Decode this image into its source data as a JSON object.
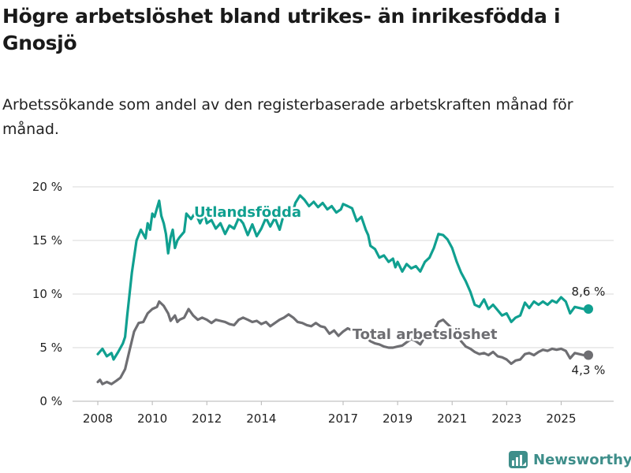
{
  "title": "Högre arbetslöshet bland utrikes- än inrikesfödda i Gnosjö",
  "subtitle": "Arbetssökande som andel av den registerbaserade arbetskraften månad för månad.",
  "brand": "Newsworthy",
  "colors": {
    "foreign": "#10a090",
    "total": "#6e6e72",
    "grid": "#d9d9d9",
    "text": "#222222",
    "brand": "#3e8e8a"
  },
  "chart_data": {
    "type": "line",
    "x_range": [
      2008,
      2026.2
    ],
    "ylim": [
      0,
      20
    ],
    "y_ticks": [
      0,
      5,
      10,
      15,
      20
    ],
    "y_tick_labels": [
      "0 %",
      "5 %",
      "10 %",
      "15 %",
      "20 %"
    ],
    "x_ticks": [
      2008,
      2010,
      2012,
      2014,
      2017,
      2019,
      2021,
      2023,
      2025
    ],
    "x_tick_labels": [
      "2008",
      "2010",
      "2012",
      "2014",
      "2017",
      "2019",
      "2021",
      "2023",
      "2025"
    ],
    "grid": true,
    "series": [
      {
        "name": "Utlandsfödda",
        "color": "#10a090",
        "end_label": "8,6 %",
        "end_value": 8.6,
        "points": [
          [
            2008.0,
            4.4
          ],
          [
            2008.17,
            4.9
          ],
          [
            2008.33,
            4.2
          ],
          [
            2008.5,
            4.5
          ],
          [
            2008.58,
            3.9
          ],
          [
            2008.75,
            4.6
          ],
          [
            2008.92,
            5.4
          ],
          [
            2009.0,
            6.0
          ],
          [
            2009.08,
            8.0
          ],
          [
            2009.25,
            12.0
          ],
          [
            2009.42,
            15.0
          ],
          [
            2009.58,
            16.0
          ],
          [
            2009.75,
            15.2
          ],
          [
            2009.83,
            16.6
          ],
          [
            2009.92,
            16.0
          ],
          [
            2010.0,
            17.5
          ],
          [
            2010.08,
            17.2
          ],
          [
            2010.17,
            18.0
          ],
          [
            2010.25,
            18.7
          ],
          [
            2010.33,
            17.3
          ],
          [
            2010.42,
            16.6
          ],
          [
            2010.5,
            15.6
          ],
          [
            2010.58,
            13.8
          ],
          [
            2010.67,
            15.3
          ],
          [
            2010.75,
            16.0
          ],
          [
            2010.83,
            14.3
          ],
          [
            2010.92,
            15.0
          ],
          [
            2011.0,
            15.3
          ],
          [
            2011.17,
            15.8
          ],
          [
            2011.25,
            17.5
          ],
          [
            2011.42,
            17.0
          ],
          [
            2011.58,
            17.6
          ],
          [
            2011.75,
            16.6
          ],
          [
            2011.92,
            17.5
          ],
          [
            2012.0,
            16.6
          ],
          [
            2012.17,
            16.9
          ],
          [
            2012.33,
            16.1
          ],
          [
            2012.5,
            16.6
          ],
          [
            2012.67,
            15.6
          ],
          [
            2012.83,
            16.4
          ],
          [
            2013.0,
            16.1
          ],
          [
            2013.17,
            17.1
          ],
          [
            2013.33,
            16.6
          ],
          [
            2013.5,
            15.5
          ],
          [
            2013.67,
            16.5
          ],
          [
            2013.83,
            15.4
          ],
          [
            2014.0,
            16.1
          ],
          [
            2014.17,
            17.1
          ],
          [
            2014.33,
            16.3
          ],
          [
            2014.5,
            17.1
          ],
          [
            2014.67,
            16.0
          ],
          [
            2014.83,
            17.5
          ],
          [
            2015.0,
            18.0
          ],
          [
            2015.17,
            17.8
          ],
          [
            2015.25,
            18.5
          ],
          [
            2015.42,
            19.2
          ],
          [
            2015.58,
            18.8
          ],
          [
            2015.75,
            18.2
          ],
          [
            2015.92,
            18.6
          ],
          [
            2016.08,
            18.1
          ],
          [
            2016.25,
            18.5
          ],
          [
            2016.42,
            17.9
          ],
          [
            2016.58,
            18.2
          ],
          [
            2016.75,
            17.6
          ],
          [
            2016.92,
            17.9
          ],
          [
            2017.0,
            18.4
          ],
          [
            2017.17,
            18.2
          ],
          [
            2017.33,
            18.0
          ],
          [
            2017.5,
            16.8
          ],
          [
            2017.67,
            17.2
          ],
          [
            2017.83,
            16.0
          ],
          [
            2017.92,
            15.5
          ],
          [
            2018.0,
            14.5
          ],
          [
            2018.17,
            14.2
          ],
          [
            2018.33,
            13.4
          ],
          [
            2018.5,
            13.6
          ],
          [
            2018.67,
            13.0
          ],
          [
            2018.83,
            13.3
          ],
          [
            2018.92,
            12.5
          ],
          [
            2019.0,
            13.0
          ],
          [
            2019.17,
            12.1
          ],
          [
            2019.33,
            12.8
          ],
          [
            2019.5,
            12.4
          ],
          [
            2019.67,
            12.6
          ],
          [
            2019.83,
            12.1
          ],
          [
            2020.0,
            13.0
          ],
          [
            2020.17,
            13.4
          ],
          [
            2020.33,
            14.3
          ],
          [
            2020.5,
            15.6
          ],
          [
            2020.67,
            15.5
          ],
          [
            2020.83,
            15.1
          ],
          [
            2021.0,
            14.3
          ],
          [
            2021.17,
            13.0
          ],
          [
            2021.33,
            12.0
          ],
          [
            2021.5,
            11.2
          ],
          [
            2021.67,
            10.2
          ],
          [
            2021.83,
            9.0
          ],
          [
            2022.0,
            8.8
          ],
          [
            2022.17,
            9.5
          ],
          [
            2022.33,
            8.6
          ],
          [
            2022.5,
            9.0
          ],
          [
            2022.67,
            8.5
          ],
          [
            2022.83,
            8.0
          ],
          [
            2023.0,
            8.2
          ],
          [
            2023.17,
            7.4
          ],
          [
            2023.33,
            7.8
          ],
          [
            2023.5,
            8.0
          ],
          [
            2023.67,
            9.2
          ],
          [
            2023.83,
            8.7
          ],
          [
            2024.0,
            9.3
          ],
          [
            2024.17,
            9.0
          ],
          [
            2024.33,
            9.3
          ],
          [
            2024.5,
            9.0
          ],
          [
            2024.67,
            9.4
          ],
          [
            2024.83,
            9.2
          ],
          [
            2025.0,
            9.7
          ],
          [
            2025.17,
            9.3
          ],
          [
            2025.33,
            8.2
          ],
          [
            2025.5,
            8.8
          ],
          [
            2025.67,
            8.7
          ],
          [
            2025.83,
            8.6
          ],
          [
            2026.0,
            8.6
          ]
        ]
      },
      {
        "name": "Total arbetslöshet",
        "color": "#6e6e72",
        "end_label": "4,3 %",
        "end_value": 4.3,
        "points": [
          [
            2008.0,
            1.8
          ],
          [
            2008.08,
            2.0
          ],
          [
            2008.17,
            1.6
          ],
          [
            2008.33,
            1.8
          ],
          [
            2008.5,
            1.6
          ],
          [
            2008.67,
            1.9
          ],
          [
            2008.83,
            2.2
          ],
          [
            2009.0,
            3.0
          ],
          [
            2009.17,
            4.8
          ],
          [
            2009.33,
            6.5
          ],
          [
            2009.5,
            7.3
          ],
          [
            2009.67,
            7.4
          ],
          [
            2009.83,
            8.2
          ],
          [
            2010.0,
            8.6
          ],
          [
            2010.17,
            8.8
          ],
          [
            2010.25,
            9.3
          ],
          [
            2010.42,
            8.9
          ],
          [
            2010.58,
            8.2
          ],
          [
            2010.67,
            7.5
          ],
          [
            2010.83,
            8.0
          ],
          [
            2010.92,
            7.4
          ],
          [
            2011.0,
            7.6
          ],
          [
            2011.17,
            7.8
          ],
          [
            2011.33,
            8.6
          ],
          [
            2011.5,
            8.0
          ],
          [
            2011.67,
            7.6
          ],
          [
            2011.83,
            7.8
          ],
          [
            2012.0,
            7.6
          ],
          [
            2012.17,
            7.3
          ],
          [
            2012.33,
            7.6
          ],
          [
            2012.5,
            7.5
          ],
          [
            2012.67,
            7.4
          ],
          [
            2012.83,
            7.2
          ],
          [
            2013.0,
            7.1
          ],
          [
            2013.17,
            7.6
          ],
          [
            2013.33,
            7.8
          ],
          [
            2013.5,
            7.6
          ],
          [
            2013.67,
            7.4
          ],
          [
            2013.83,
            7.5
          ],
          [
            2014.0,
            7.2
          ],
          [
            2014.17,
            7.4
          ],
          [
            2014.33,
            7.0
          ],
          [
            2014.5,
            7.3
          ],
          [
            2014.67,
            7.6
          ],
          [
            2014.83,
            7.8
          ],
          [
            2015.0,
            8.1
          ],
          [
            2015.17,
            7.8
          ],
          [
            2015.33,
            7.4
          ],
          [
            2015.5,
            7.3
          ],
          [
            2015.67,
            7.1
          ],
          [
            2015.83,
            7.0
          ],
          [
            2016.0,
            7.3
          ],
          [
            2016.17,
            7.0
          ],
          [
            2016.33,
            6.9
          ],
          [
            2016.5,
            6.3
          ],
          [
            2016.67,
            6.6
          ],
          [
            2016.83,
            6.1
          ],
          [
            2017.0,
            6.5
          ],
          [
            2017.17,
            6.8
          ],
          [
            2017.33,
            6.6
          ],
          [
            2017.5,
            6.5
          ],
          [
            2017.67,
            6.2
          ],
          [
            2017.83,
            6.0
          ],
          [
            2018.0,
            5.6
          ],
          [
            2018.17,
            5.4
          ],
          [
            2018.33,
            5.3
          ],
          [
            2018.5,
            5.1
          ],
          [
            2018.67,
            5.0
          ],
          [
            2018.83,
            5.0
          ],
          [
            2019.0,
            5.1
          ],
          [
            2019.17,
            5.2
          ],
          [
            2019.33,
            5.5
          ],
          [
            2019.5,
            5.8
          ],
          [
            2019.67,
            5.6
          ],
          [
            2019.83,
            5.3
          ],
          [
            2020.0,
            6.0
          ],
          [
            2020.17,
            6.3
          ],
          [
            2020.33,
            6.6
          ],
          [
            2020.5,
            7.4
          ],
          [
            2020.67,
            7.6
          ],
          [
            2020.83,
            7.2
          ],
          [
            2021.0,
            6.8
          ],
          [
            2021.17,
            6.2
          ],
          [
            2021.33,
            5.6
          ],
          [
            2021.5,
            5.1
          ],
          [
            2021.67,
            4.9
          ],
          [
            2021.83,
            4.6
          ],
          [
            2022.0,
            4.4
          ],
          [
            2022.17,
            4.5
          ],
          [
            2022.33,
            4.3
          ],
          [
            2022.5,
            4.6
          ],
          [
            2022.67,
            4.2
          ],
          [
            2022.83,
            4.1
          ],
          [
            2023.0,
            3.9
          ],
          [
            2023.17,
            3.5
          ],
          [
            2023.33,
            3.8
          ],
          [
            2023.5,
            3.9
          ],
          [
            2023.67,
            4.4
          ],
          [
            2023.83,
            4.5
          ],
          [
            2024.0,
            4.3
          ],
          [
            2024.17,
            4.6
          ],
          [
            2024.33,
            4.8
          ],
          [
            2024.5,
            4.7
          ],
          [
            2024.67,
            4.9
          ],
          [
            2024.83,
            4.8
          ],
          [
            2025.0,
            4.9
          ],
          [
            2025.17,
            4.7
          ],
          [
            2025.33,
            4.0
          ],
          [
            2025.5,
            4.5
          ],
          [
            2025.67,
            4.4
          ],
          [
            2025.83,
            4.3
          ],
          [
            2026.0,
            4.3
          ]
        ]
      }
    ],
    "annotations": [
      {
        "text": "Utlandsfödda",
        "series": "Utlandsfödda",
        "x": 2013.5,
        "y": 17.2
      },
      {
        "text": "Total arbetslöshet",
        "series": "Total arbetslöshet",
        "x": 2020.0,
        "y": 5.8
      }
    ]
  }
}
